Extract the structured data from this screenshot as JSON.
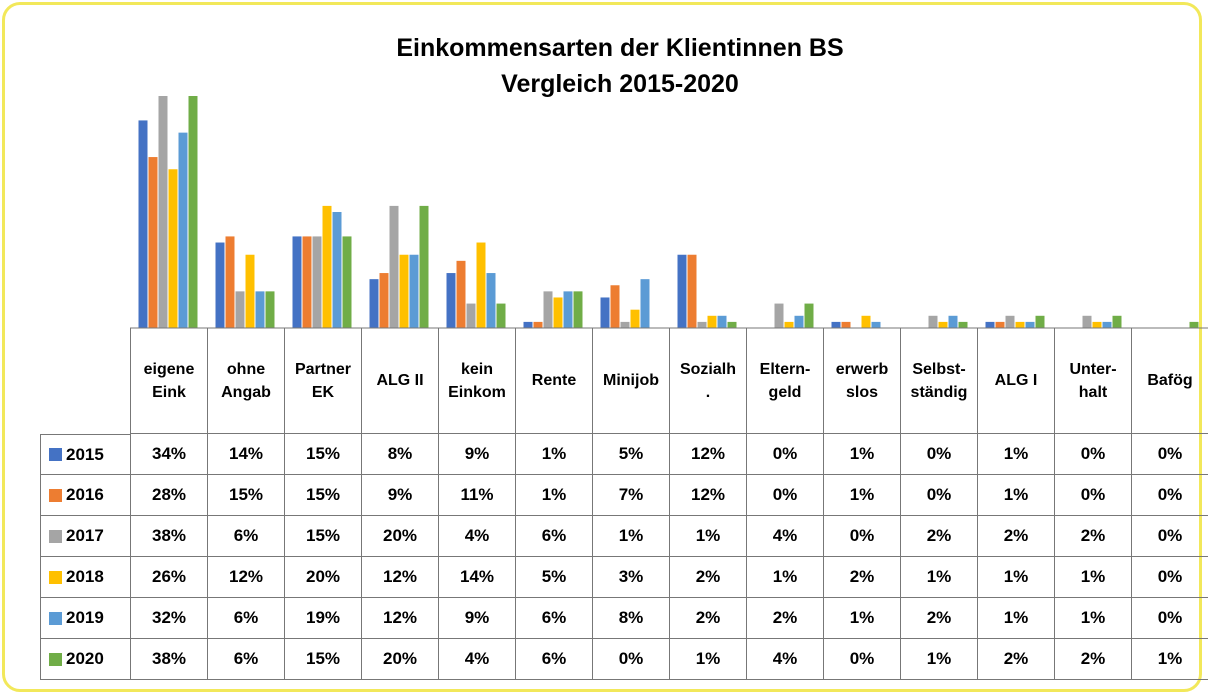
{
  "chart_data": {
    "type": "bar",
    "title": [
      "Einkommensarten der Klientinnen BS",
      "Vergleich 2015-2020"
    ],
    "categories": [
      "eigene Eink",
      "ohne Angab",
      "Partner EK",
      "ALG II",
      "kein Einkom",
      "Rente",
      "Minijob",
      "Sozialh.",
      "Eltern-geld",
      "erwerbslos",
      "Selbst-ständig",
      "ALG I",
      "Unter-halt",
      "Bafög"
    ],
    "series": [
      {
        "name": "2015",
        "color": "#4472c4",
        "values": [
          34,
          14,
          15,
          8,
          9,
          1,
          5,
          12,
          0,
          1,
          0,
          1,
          0,
          0
        ],
        "value_labels": [
          "34%",
          "14%",
          "15%",
          "8%",
          "9%",
          "1%",
          "5%",
          "12%",
          "0%",
          "1%",
          "0%",
          "1%",
          "0%",
          "0%"
        ]
      },
      {
        "name": "2016",
        "color": "#ed7d31",
        "values": [
          28,
          15,
          15,
          9,
          11,
          1,
          7,
          12,
          0,
          1,
          0,
          1,
          0,
          0
        ],
        "value_labels": [
          "28%",
          "15%",
          "15%",
          "9%",
          "11%",
          "1%",
          "7%",
          "12%",
          "0%",
          "1%",
          "0%",
          "1%",
          "0%",
          "0%"
        ]
      },
      {
        "name": "2017",
        "color": "#a5a5a5",
        "values": [
          38,
          6,
          15,
          20,
          4,
          6,
          1,
          1,
          4,
          0,
          2,
          2,
          2,
          0
        ],
        "value_labels": [
          "38%",
          "6%",
          "15%",
          "20%",
          "4%",
          "6%",
          "1%",
          "1%",
          "4%",
          "0%",
          "2%",
          "2%",
          "2%",
          "0%"
        ]
      },
      {
        "name": "2018",
        "color": "#ffc000",
        "values": [
          26,
          12,
          20,
          12,
          14,
          5,
          3,
          2,
          1,
          2,
          1,
          1,
          1,
          0
        ],
        "value_labels": [
          "26%",
          "12%",
          "20%",
          "12%",
          "14%",
          "5%",
          "3%",
          "2%",
          "1%",
          "2%",
          "1%",
          "1%",
          "1%",
          "0%"
        ]
      },
      {
        "name": "2019",
        "color": "#5b9bd5",
        "values": [
          32,
          6,
          19,
          12,
          9,
          6,
          8,
          2,
          2,
          1,
          2,
          1,
          1,
          0
        ],
        "value_labels": [
          "32%",
          "6%",
          "19%",
          "12%",
          "9%",
          "6%",
          "8%",
          "2%",
          "2%",
          "1%",
          "2%",
          "1%",
          "1%",
          "0%"
        ]
      },
      {
        "name": "2020",
        "color": "#70ad47",
        "values": [
          38,
          6,
          15,
          20,
          4,
          6,
          0,
          1,
          4,
          0,
          1,
          2,
          2,
          1
        ],
        "value_labels": [
          "38%",
          "6%",
          "15%",
          "20%",
          "4%",
          "6%",
          "0%",
          "1%",
          "4%",
          "0%",
          "1%",
          "2%",
          "2%",
          "1%"
        ]
      }
    ]
  }
}
